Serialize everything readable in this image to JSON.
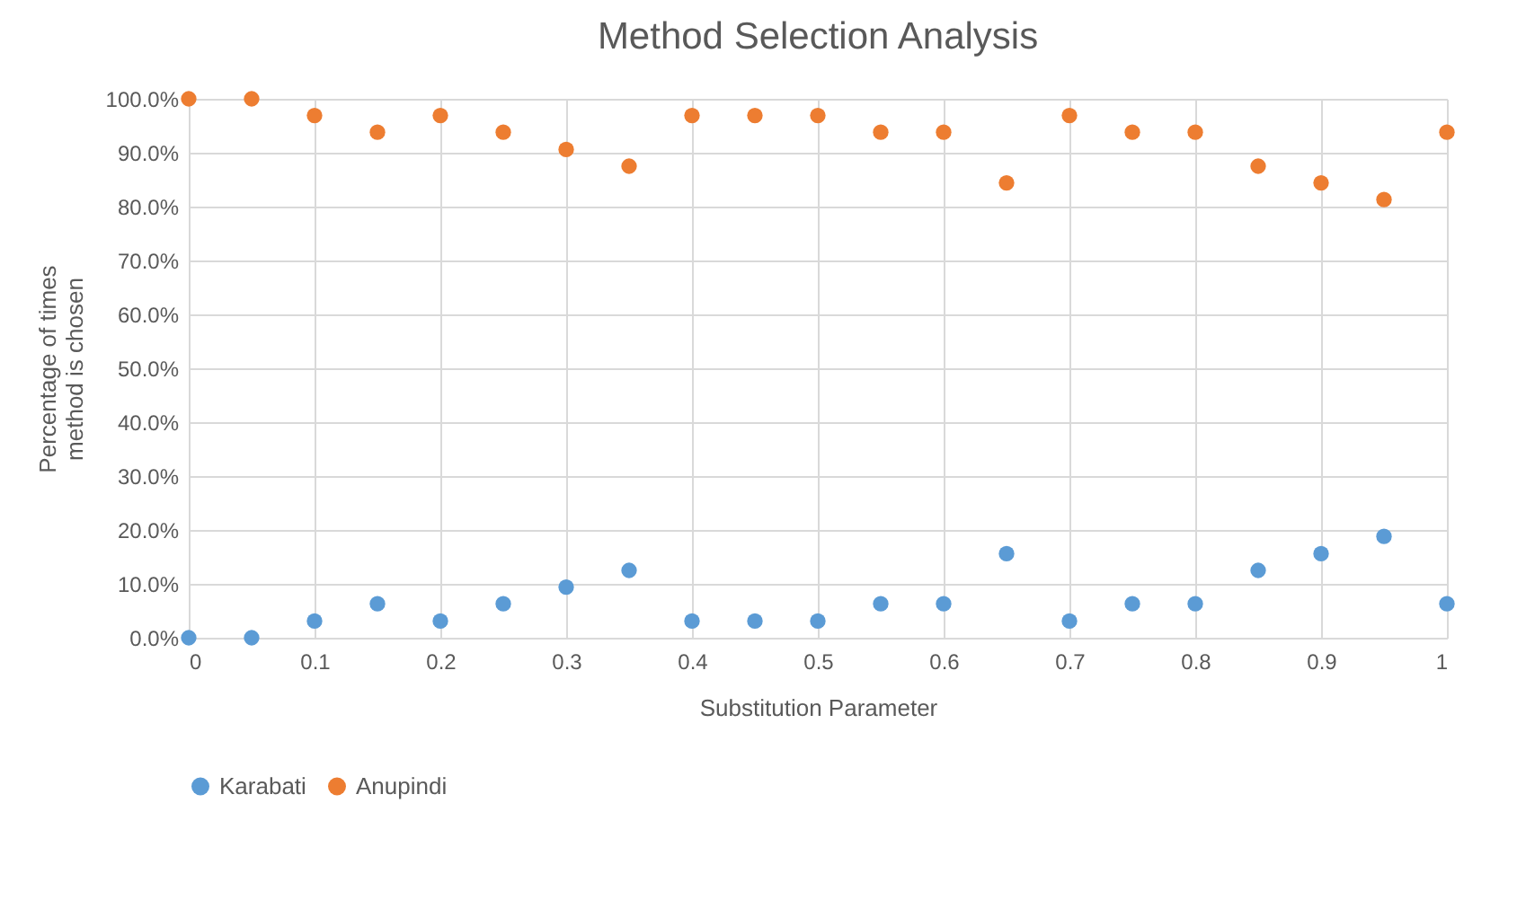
{
  "chart_data": {
    "type": "scatter",
    "title": "Method Selection Analysis",
    "xlabel": "Substitution Parameter",
    "ylabel": "Percentage of times method is chosen",
    "x": [
      0,
      0.05,
      0.1,
      0.15,
      0.2,
      0.25,
      0.3,
      0.35,
      0.4,
      0.45,
      0.5,
      0.55,
      0.6,
      0.65,
      0.7,
      0.75,
      0.8,
      0.85,
      0.9,
      0.95,
      1
    ],
    "series": [
      {
        "name": "Karabati",
        "color": "#5b9bd5",
        "values": [
          0,
          0,
          3.1,
          6.3,
          3.1,
          6.3,
          9.4,
          12.5,
          3.1,
          3.1,
          3.1,
          6.3,
          6.3,
          15.6,
          3.1,
          6.3,
          6.3,
          12.5,
          15.6,
          18.8,
          6.3
        ]
      },
      {
        "name": "Anupindi",
        "color": "#ed7d31",
        "values": [
          100,
          100,
          96.9,
          93.8,
          96.9,
          93.8,
          90.6,
          87.5,
          96.9,
          96.9,
          96.9,
          93.8,
          93.8,
          84.4,
          96.9,
          93.8,
          93.8,
          87.5,
          84.4,
          81.3,
          93.8
        ]
      }
    ],
    "xlim": [
      0,
      1
    ],
    "xticks": [
      0,
      0.1,
      0.2,
      0.3,
      0.4,
      0.5,
      0.6,
      0.7,
      0.8,
      0.9,
      1
    ],
    "ylim": [
      0,
      100
    ],
    "yticks": [
      {
        "value": 0,
        "label": "0.0%"
      },
      {
        "value": 10,
        "label": "10.0%"
      },
      {
        "value": 20,
        "label": "20.0%"
      },
      {
        "value": 30,
        "label": "30.0%"
      },
      {
        "value": 40,
        "label": "40.0%"
      },
      {
        "value": 50,
        "label": "50.0%"
      },
      {
        "value": 60,
        "label": "60.0%"
      },
      {
        "value": 70,
        "label": "70.0%"
      },
      {
        "value": 80,
        "label": "80.0%"
      },
      {
        "value": 90,
        "label": "90.0%"
      },
      {
        "value": 100,
        "label": "100.0%"
      }
    ],
    "grid": true,
    "legend": "bottom",
    "marker": "circle"
  }
}
